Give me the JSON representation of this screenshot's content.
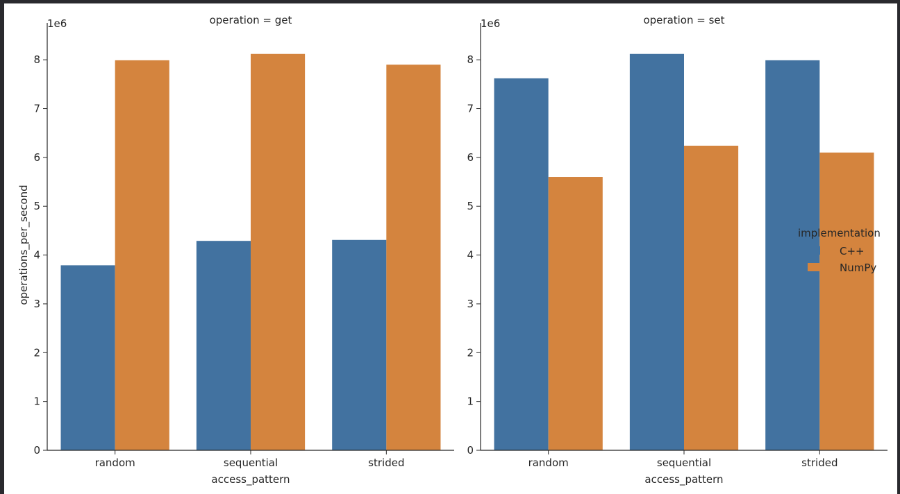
{
  "chart_data": {
    "type": "bar",
    "categories": [
      "random",
      "sequential",
      "strided"
    ],
    "xlabel": "access_pattern",
    "ylabel": "operations_per_second",
    "y_multiplier_label": "1e6",
    "ylim": [
      0,
      8.5
    ],
    "yticks": [
      0,
      1,
      2,
      3,
      4,
      5,
      6,
      7,
      8
    ],
    "grid": false,
    "legend": {
      "title": "implementation",
      "placement": "right",
      "entries": [
        {
          "name": "C++",
          "color": "#4272a0"
        },
        {
          "name": "NumPy",
          "color": "#d4843e"
        }
      ]
    },
    "panels": [
      {
        "title": "operation = get",
        "series": [
          {
            "name": "C++",
            "values": [
              3.79,
              4.29,
              4.31
            ]
          },
          {
            "name": "NumPy",
            "values": [
              7.99,
              8.12,
              7.9
            ]
          }
        ]
      },
      {
        "title": "operation = set",
        "series": [
          {
            "name": "C++",
            "values": [
              7.62,
              8.12,
              7.99
            ]
          },
          {
            "name": "NumPy",
            "values": [
              5.6,
              6.24,
              6.1
            ]
          }
        ]
      }
    ]
  }
}
